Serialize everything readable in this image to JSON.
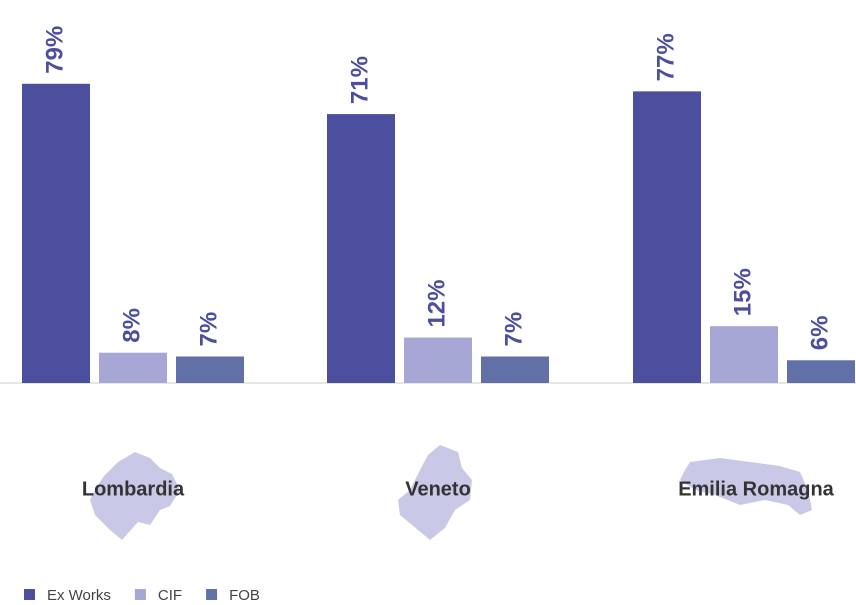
{
  "chart_data": {
    "type": "bar",
    "categories": [
      "Lombardia",
      "Veneto",
      "Emilia Romagna"
    ],
    "series": [
      {
        "name": "Ex Works",
        "color": "#4b4f9e",
        "values": [
          79,
          71,
          77
        ],
        "value_labels": [
          "79%",
          "71%",
          "77%"
        ]
      },
      {
        "name": "CIF",
        "color": "#a7a7d5",
        "values": [
          8,
          12,
          15
        ],
        "value_labels": [
          "8%",
          "12%",
          "15%"
        ]
      },
      {
        "name": "FOB",
        "color": "#6170a6",
        "values": [
          7,
          7,
          6
        ],
        "value_labels": [
          "7%",
          "7%",
          "6%"
        ]
      }
    ],
    "ylim": [
      0,
      80
    ]
  }
}
